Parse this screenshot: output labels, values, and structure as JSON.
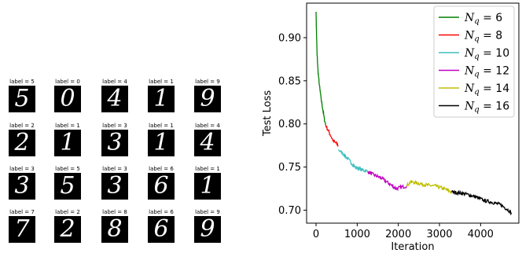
{
  "mnist": {
    "samples": [
      {
        "label": "label = 5",
        "digit": "5"
      },
      {
        "label": "label = 0",
        "digit": "0"
      },
      {
        "label": "label = 4",
        "digit": "4"
      },
      {
        "label": "label = 1",
        "digit": "1"
      },
      {
        "label": "label = 9",
        "digit": "9"
      },
      {
        "label": "label = 2",
        "digit": "2"
      },
      {
        "label": "label = 1",
        "digit": "1"
      },
      {
        "label": "label = 3",
        "digit": "3"
      },
      {
        "label": "label = 1",
        "digit": "1"
      },
      {
        "label": "label = 4",
        "digit": "4"
      },
      {
        "label": "label = 3",
        "digit": "3"
      },
      {
        "label": "label = 5",
        "digit": "5"
      },
      {
        "label": "label = 3",
        "digit": "3"
      },
      {
        "label": "label = 6",
        "digit": "6"
      },
      {
        "label": "label = 1",
        "digit": "1"
      },
      {
        "label": "label = 7",
        "digit": "7"
      },
      {
        "label": "label = 2",
        "digit": "2"
      },
      {
        "label": "label = 8",
        "digit": "8"
      },
      {
        "label": "label = 6",
        "digit": "6"
      },
      {
        "label": "label = 9",
        "digit": "9"
      }
    ]
  },
  "chart_data": {
    "type": "line",
    "title": "",
    "xlabel": "Iteration",
    "ylabel": "Test Loss",
    "xlim": [
      -230,
      4930
    ],
    "ylim": [
      0.685,
      0.94
    ],
    "xticks": [
      0,
      1000,
      2000,
      3000,
      4000
    ],
    "xtick_labels": [
      "0",
      "1000",
      "2000",
      "3000",
      "4000"
    ],
    "yticks": [
      0.7,
      0.75,
      0.8,
      0.85,
      0.9
    ],
    "ytick_labels": [
      "0.70",
      "0.75",
      "0.80",
      "0.85",
      "0.90"
    ],
    "grid": false,
    "legend_position": "top-right",
    "series": [
      {
        "name": "N_q = 6",
        "legend_main": "N",
        "legend_sub": "q",
        "legend_value": " = 6",
        "color": "#008000",
        "x": [
          0,
          10,
          25,
          50,
          80,
          120,
          160,
          200,
          240
        ],
        "y": [
          0.93,
          0.905,
          0.88,
          0.86,
          0.845,
          0.83,
          0.818,
          0.806,
          0.798
        ]
      },
      {
        "name": "N_q = 8",
        "legend_main": "N",
        "legend_sub": "q",
        "legend_value": " = 8",
        "color": "#ff0000",
        "x": [
          240,
          300,
          360,
          420,
          480,
          540
        ],
        "y": [
          0.798,
          0.792,
          0.786,
          0.78,
          0.778,
          0.775
        ]
      },
      {
        "name": "N_q = 10",
        "legend_main": "N",
        "legend_sub": "q",
        "legend_value": " = 10",
        "color": "#3fbfbf",
        "x": [
          540,
          650,
          800,
          950,
          1100,
          1250
        ],
        "y": [
          0.77,
          0.766,
          0.758,
          0.75,
          0.747,
          0.745
        ]
      },
      {
        "name": "N_q = 12",
        "legend_main": "N",
        "legend_sub": "q",
        "legend_value": " = 12",
        "color": "#bf00bf",
        "x": [
          1250,
          1400,
          1600,
          1800,
          1950,
          2100,
          2200
        ],
        "y": [
          0.745,
          0.741,
          0.737,
          0.73,
          0.725,
          0.727,
          0.728
        ]
      },
      {
        "name": "N_q = 14",
        "legend_main": "N",
        "legend_sub": "q",
        "legend_value": " = 14",
        "color": "#bfbf00",
        "x": [
          2200,
          2300,
          2500,
          2700,
          2900,
          3100,
          3300
        ],
        "y": [
          0.728,
          0.733,
          0.731,
          0.729,
          0.728,
          0.725,
          0.721
        ]
      },
      {
        "name": "N_q = 16",
        "legend_main": "N",
        "legend_sub": "q",
        "legend_value": " = 16",
        "color": "#000000",
        "x": [
          3300,
          3500,
          3700,
          3900,
          4100,
          4300,
          4500,
          4650,
          4750
        ],
        "y": [
          0.721,
          0.72,
          0.718,
          0.715,
          0.711,
          0.709,
          0.706,
          0.701,
          0.697
        ]
      }
    ]
  }
}
